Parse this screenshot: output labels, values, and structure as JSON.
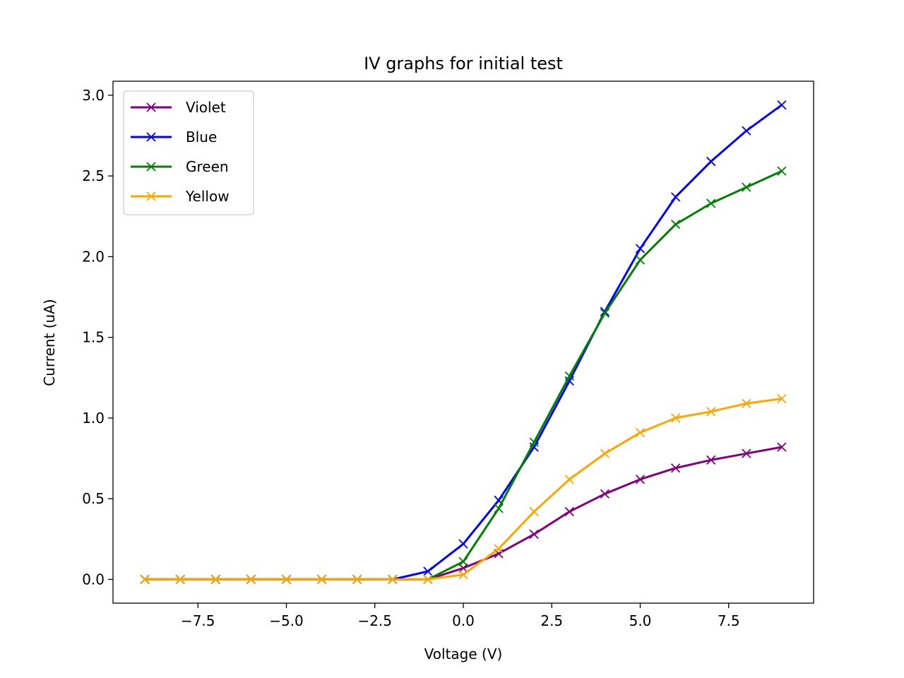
{
  "chart_data": {
    "type": "line",
    "title": "IV graphs for initial test",
    "xlabel": "Voltage (V)",
    "ylabel": "Current (uA)",
    "xlim": [
      -9.9,
      9.9
    ],
    "ylim": [
      -0.147,
      3.087
    ],
    "x_ticks": [
      -7.5,
      -5.0,
      -2.5,
      0.0,
      2.5,
      5.0,
      7.5
    ],
    "x_tick_labels": [
      "−7.5",
      "−5.0",
      "−2.5",
      "0.0",
      "2.5",
      "5.0",
      "7.5"
    ],
    "y_ticks": [
      0.0,
      0.5,
      1.0,
      1.5,
      2.0,
      2.5,
      3.0
    ],
    "y_tick_labels": [
      "0.0",
      "0.5",
      "1.0",
      "1.5",
      "2.0",
      "2.5",
      "3.0"
    ],
    "grid": false,
    "legend_position": "top-left",
    "marker": "x",
    "x": [
      -9,
      -8,
      -7,
      -6,
      -5,
      -4,
      -3,
      -2,
      -1,
      0,
      1,
      2,
      3,
      4,
      5,
      6,
      7,
      8,
      9
    ],
    "series": [
      {
        "name": "Violet",
        "color": "#800080",
        "values": [
          0,
          0,
          0,
          0,
          0,
          0,
          0,
          0,
          0,
          0.07,
          0.16,
          0.28,
          0.42,
          0.53,
          0.62,
          0.69,
          0.74,
          0.78,
          0.82
        ]
      },
      {
        "name": "Blue",
        "color": "#0000ff",
        "values": [
          0,
          0,
          0,
          0,
          0,
          0,
          0,
          0,
          0.05,
          0.22,
          0.49,
          0.82,
          1.23,
          1.66,
          2.05,
          2.37,
          2.59,
          2.78,
          2.94
        ]
      },
      {
        "name": "Green",
        "color": "#008000",
        "values": [
          0,
          0,
          0,
          0,
          0,
          0,
          0,
          0,
          0,
          0.11,
          0.44,
          0.85,
          1.26,
          1.65,
          1.98,
          2.2,
          2.33,
          2.43,
          2.53
        ]
      },
      {
        "name": "Yellow",
        "color": "#ffa500",
        "values": [
          0,
          0,
          0,
          0,
          0,
          0,
          0,
          0,
          0,
          0.03,
          0.19,
          0.42,
          0.62,
          0.78,
          0.91,
          1.0,
          1.04,
          1.09,
          1.12
        ]
      }
    ]
  }
}
